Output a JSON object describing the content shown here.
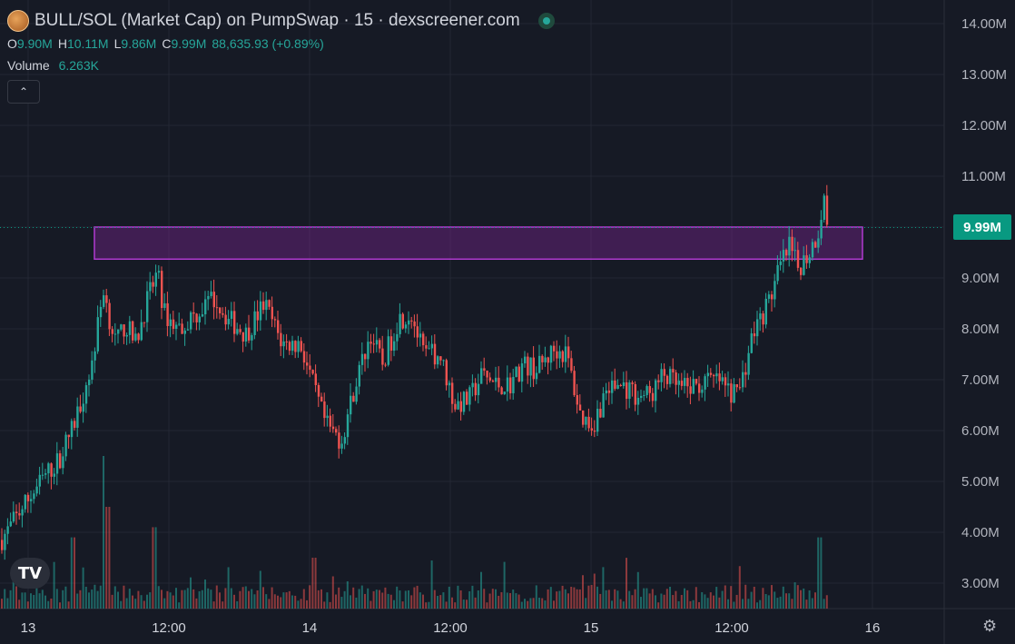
{
  "header": {
    "title": "BULL/SOL (Market Cap) on PumpSwap · 15 · dexscreener.com",
    "ohlc": {
      "o_label": "O",
      "o": "9.90M",
      "h_label": "H",
      "h": "10.11M",
      "l_label": "L",
      "l": "9.86M",
      "c_label": "C",
      "c": "9.99M",
      "change": "88,635.93 (+0.89%)"
    },
    "volume_label": "Volume",
    "volume_value": "6.263K",
    "collapse_icon": "chevron-up-icon"
  },
  "last_price_label": "9.99M",
  "colors": {
    "up": "#26a69a",
    "down": "#ef5350",
    "background": "#161a25",
    "grid": "#232733",
    "zone": "#9c27b0",
    "price_line": "#089981"
  },
  "chart_data": {
    "type": "candlestick",
    "y_unit": "Market Cap",
    "ylim": [
      2.5,
      14.4
    ],
    "y_ticks": [
      "3.00M",
      "4.00M",
      "5.00M",
      "6.00M",
      "7.00M",
      "8.00M",
      "9.00M",
      "10.00M",
      "11.00M",
      "12.00M",
      "13.00M",
      "14.00M"
    ],
    "x_tick_labels": [
      "13",
      "12:00",
      "14",
      "12:00",
      "15",
      "12:00",
      "16"
    ],
    "last_price": 9.99,
    "resistance_zone": {
      "low": 9.37,
      "high": 10.0
    },
    "anchors": [
      [
        0,
        3.85
      ],
      [
        10,
        4.1
      ],
      [
        20,
        4.4
      ],
      [
        32,
        4.7
      ],
      [
        48,
        5.1
      ],
      [
        63,
        5.4
      ],
      [
        80,
        6.1
      ],
      [
        90,
        6.7
      ],
      [
        100,
        7.3
      ],
      [
        113,
        8.8
      ],
      [
        118,
        8.3
      ],
      [
        127,
        7.7
      ],
      [
        137,
        8.1
      ],
      [
        148,
        7.7
      ],
      [
        160,
        8.5
      ],
      [
        172,
        9.1
      ],
      [
        180,
        8.3
      ],
      [
        195,
        8.0
      ],
      [
        215,
        8.3
      ],
      [
        235,
        8.6
      ],
      [
        250,
        8.2
      ],
      [
        270,
        7.9
      ],
      [
        290,
        8.5
      ],
      [
        310,
        7.7
      ],
      [
        330,
        7.7
      ],
      [
        345,
        6.8
      ],
      [
        358,
        6.1
      ],
      [
        375,
        5.8
      ],
      [
        390,
        6.9
      ],
      [
        407,
        7.9
      ],
      [
        420,
        7.3
      ],
      [
        438,
        8.2
      ],
      [
        452,
        8.3
      ],
      [
        465,
        7.5
      ],
      [
        483,
        7.5
      ],
      [
        500,
        6.5
      ],
      [
        515,
        6.6
      ],
      [
        530,
        7.1
      ],
      [
        545,
        6.9
      ],
      [
        560,
        6.9
      ],
      [
        575,
        7.3
      ],
      [
        590,
        7.2
      ],
      [
        610,
        7.6
      ],
      [
        623,
        7.5
      ],
      [
        638,
        6.3
      ],
      [
        652,
        6.1
      ],
      [
        667,
        6.8
      ],
      [
        682,
        6.9
      ],
      [
        700,
        6.7
      ],
      [
        716,
        6.7
      ],
      [
        730,
        7.1
      ],
      [
        750,
        6.8
      ],
      [
        770,
        6.9
      ],
      [
        790,
        7.0
      ],
      [
        805,
        6.7
      ],
      [
        815,
        6.9
      ],
      [
        828,
        7.9
      ],
      [
        845,
        8.5
      ],
      [
        858,
        9.2
      ],
      [
        868,
        9.6
      ],
      [
        878,
        9.2
      ],
      [
        890,
        9.5
      ],
      [
        900,
        9.9
      ],
      [
        906,
        10.6
      ],
      [
        912,
        9.8
      ],
      [
        915,
        9.99
      ]
    ],
    "volume_peaks": [
      [
        80,
        3.9
      ],
      [
        113,
        5.5
      ],
      [
        117,
        4.5
      ],
      [
        168,
        4.1
      ],
      [
        345,
        3.5
      ],
      [
        867,
        2.8
      ],
      [
        901,
        3.9
      ]
    ]
  }
}
